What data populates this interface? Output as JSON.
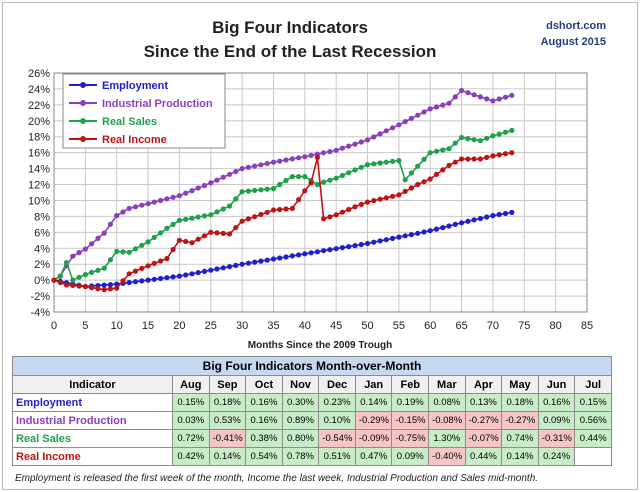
{
  "source": {
    "site": "dshort.com",
    "date": "August 2015"
  },
  "chart_data": {
    "type": "line",
    "title": "Big Four Indicators",
    "subtitle": "Since the End of the Last Recession",
    "xlabel": "Months Since the 2009 Trough",
    "ylabel": "",
    "xlim": [
      0,
      85
    ],
    "ylim": [
      -4,
      26
    ],
    "xticks": [
      "0",
      "5",
      "10",
      "15",
      "20",
      "25",
      "30",
      "35",
      "40",
      "45",
      "50",
      "55",
      "60",
      "65",
      "70",
      "75",
      "80",
      "85"
    ],
    "yticks": [
      "-4%",
      "-2%",
      "0%",
      "2%",
      "4%",
      "6%",
      "8%",
      "10%",
      "12%",
      "14%",
      "16%",
      "18%",
      "20%",
      "22%",
      "24%",
      "26%"
    ],
    "grid": true,
    "legend_position": "top-left",
    "series": [
      {
        "name": "Employment",
        "color": "#1f1fd2",
        "x": [
          0,
          5,
          10,
          20,
          30,
          40,
          50,
          60,
          65,
          70,
          73
        ],
        "y": [
          0,
          -0.8,
          -0.5,
          0.5,
          2.0,
          3.3,
          4.6,
          6.2,
          7.2,
          8.1,
          8.5
        ]
      },
      {
        "name": "Industrial Production",
        "color": "#8a3fbd",
        "x": [
          0,
          1,
          2,
          3,
          5,
          8,
          10,
          12,
          15,
          20,
          25,
          30,
          35,
          40,
          45,
          50,
          55,
          60,
          63,
          65,
          68,
          70,
          73
        ],
        "y": [
          0,
          0.5,
          1.8,
          3.0,
          3.9,
          5.9,
          8.1,
          9.0,
          9.6,
          10.6,
          12.2,
          14.0,
          14.8,
          15.5,
          16.3,
          17.6,
          19.5,
          21.5,
          22.2,
          23.8,
          23.0,
          22.5,
          23.2
        ]
      },
      {
        "name": "Real Sales",
        "color": "#1fa04a",
        "x": [
          0,
          1,
          2,
          3,
          5,
          8,
          10,
          12,
          15,
          18,
          20,
          25,
          28,
          30,
          35,
          38,
          40,
          42,
          43,
          45,
          50,
          55,
          56,
          60,
          63,
          65,
          68,
          70,
          73
        ],
        "y": [
          0,
          0.5,
          2.2,
          0,
          0.7,
          1.5,
          3.6,
          3.5,
          4.8,
          6.5,
          7.5,
          8.2,
          9.3,
          11.1,
          11.5,
          13.0,
          13.0,
          12.0,
          12.3,
          12.8,
          14.5,
          15.0,
          12.6,
          16.0,
          16.5,
          17.9,
          17.5,
          18.1,
          18.8
        ]
      },
      {
        "name": "Real Income",
        "color": "#c01414",
        "x": [
          0,
          2,
          5,
          8,
          10,
          12,
          15,
          18,
          20,
          22,
          25,
          28,
          30,
          35,
          38,
          40,
          41,
          42,
          43,
          45,
          48,
          50,
          55,
          58,
          60,
          63,
          65,
          68,
          70,
          73
        ],
        "y": [
          0,
          -0.6,
          -0.8,
          -1.2,
          -1.0,
          0.8,
          1.8,
          2.7,
          5.0,
          4.7,
          6.0,
          5.8,
          7.4,
          8.8,
          9.0,
          11.2,
          12.2,
          15.4,
          7.7,
          8.2,
          9.2,
          9.8,
          10.7,
          12.0,
          12.7,
          14.4,
          15.2,
          15.2,
          15.6,
          16.0
        ]
      }
    ]
  },
  "table": {
    "title": "Big Four Indicators Month-over-Month",
    "header": [
      "Indicator",
      "Aug",
      "Sep",
      "Oct",
      "Nov",
      "Dec",
      "Jan",
      "Feb",
      "Mar",
      "Apr",
      "May",
      "Jun",
      "Jul"
    ],
    "rows": [
      {
        "name": "Employment",
        "color": "#1f1fd2",
        "values": [
          "0.15%",
          "0.18%",
          "0.16%",
          "0.30%",
          "0.23%",
          "0.14%",
          "0.19%",
          "0.08%",
          "0.13%",
          "0.18%",
          "0.16%",
          "0.15%"
        ]
      },
      {
        "name": "Industrial Production",
        "color": "#8a3fbd",
        "values": [
          "0.03%",
          "0.53%",
          "0.16%",
          "0.89%",
          "0.10%",
          "-0.29%",
          "-0.15%",
          "-0.08%",
          "-0.27%",
          "-0.27%",
          "0.09%",
          "0.56%"
        ]
      },
      {
        "name": "Real Sales",
        "color": "#1fa04a",
        "values": [
          "0.72%",
          "-0.41%",
          "0.38%",
          "0.80%",
          "-0.54%",
          "-0.09%",
          "-0.75%",
          "1.30%",
          "-0.07%",
          "0.74%",
          "-0.31%",
          "0.44%"
        ]
      },
      {
        "name": "Real Income",
        "color": "#c01414",
        "values": [
          "0.42%",
          "0.14%",
          "0.54%",
          "0.78%",
          "0.51%",
          "0.47%",
          "0.09%",
          "-0.40%",
          "0.44%",
          "0.14%",
          "0.24%",
          ""
        ]
      }
    ],
    "positive_fill": "#c8ecc8",
    "negative_fill": "#f6c6c6"
  },
  "footnote": "Employment is released the first week of the month, Income the last week, Industrial Production and Sales mid-month."
}
